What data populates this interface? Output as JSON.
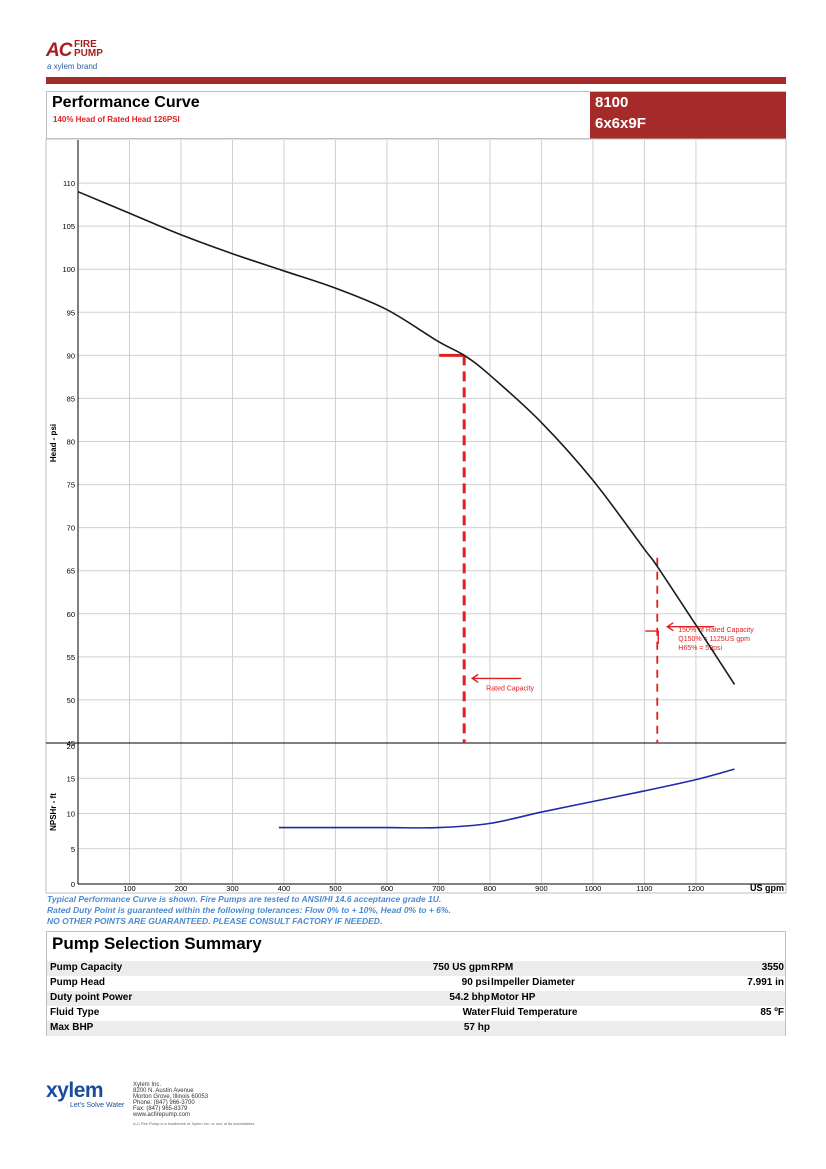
{
  "brand": {
    "mark": "AC",
    "name_line1": "FIRE",
    "name_line2": "PUMP",
    "tagline": "a xylem brand"
  },
  "header": {
    "title": "Performance Curve",
    "subtitle": "140% Head of Rated Head 126PSI",
    "model_number": "8100",
    "model_size": "6x6x9F"
  },
  "chart_data": [
    {
      "type": "line",
      "ylabel": "Head - psi",
      "xlabel": "US gpm",
      "xlim": [
        0,
        1375
      ],
      "ylim": [
        45,
        115
      ],
      "y_ticks": [
        45,
        50,
        55,
        60,
        65,
        70,
        75,
        80,
        85,
        90,
        95,
        100,
        105,
        110
      ],
      "x_ticks": [
        100,
        200,
        300,
        400,
        500,
        600,
        700,
        800,
        900,
        1000,
        1100,
        1200
      ],
      "grid": true,
      "series": [
        {
          "x": [
            0,
            100,
            200,
            300,
            400,
            500,
            600,
            700,
            750,
            800,
            900,
            1000,
            1100,
            1125,
            1200,
            1275
          ],
          "y": [
            109,
            106.5,
            104,
            101.8,
            99.8,
            97.8,
            95.3,
            91.6,
            90,
            87.7,
            82.2,
            75.5,
            67.5,
            65.5,
            58.7,
            51.8
          ]
        }
      ],
      "annotations": [
        {
          "text": "Rated Capacity",
          "x": 750,
          "y": 90
        },
        {
          "text": "150% of Rated Capacity",
          "line2": "Q150% = 1125US gpm",
          "line3": "H65% = 59psi",
          "x": 1125,
          "y": 65
        }
      ]
    },
    {
      "type": "line",
      "ylabel": "NPSHr - ft",
      "xlim": [
        0,
        1375
      ],
      "ylim": [
        0,
        20
      ],
      "y_ticks": [
        0,
        5,
        10,
        15,
        20
      ],
      "grid": true,
      "series": [
        {
          "x": [
            390,
            500,
            600,
            700,
            800,
            900,
            1000,
            1100,
            1200,
            1275
          ],
          "y": [
            8.0,
            8.0,
            8.0,
            8.0,
            8.6,
            10.2,
            11.7,
            13.2,
            14.8,
            16.3
          ]
        }
      ]
    }
  ],
  "notes": [
    "Typical Performance Curve is shown. Fire Pumps are tested to ANSI/HI 14.6 acceptance grade 1U.",
    "Rated Duty Point is guaranteed within the following tolerances: Flow 0% to + 10%, Head 0% to + 6%.",
    "NO OTHER POINTS ARE GUARANTEED. PLEASE CONSULT FACTORY IF NEEDED."
  ],
  "summary": {
    "title": "Pump Selection Summary",
    "rows": [
      {
        "l_label": "Pump Capacity",
        "l_value": "750 US gpm",
        "r_label": "RPM",
        "r_value": "3550"
      },
      {
        "l_label": "Pump Head",
        "l_value": "90 psi",
        "r_label": "Impeller Diameter",
        "r_value": "7.991 in"
      },
      {
        "l_label": "Duty point Power",
        "l_value": "54.2 bhp",
        "r_label": "Motor HP",
        "r_value": ""
      },
      {
        "l_label": "Fluid Type",
        "l_value": "Water",
        "r_label": "Fluid Temperature",
        "r_value": "85 ºF"
      },
      {
        "l_label": "Max BHP",
        "l_value": "57 hp",
        "r_label": "",
        "r_value": ""
      }
    ]
  },
  "footer": {
    "logo": "xylem",
    "tagline": "Let's Solve Water",
    "address": [
      "Xylem Inc.",
      "8200 N. Austin Avenue",
      "Morton Grove, Illinois 60053",
      "Phone: (847) 966-3700",
      "Fax: (847) 965-8379",
      "www.acfirepump.com"
    ],
    "legal": "A-C Fire Pump is a trademark of Xylem Inc. or one of its subsidiaries"
  },
  "colors": {
    "accent": "#a52a2a",
    "curve": "#1a1a1a",
    "npsh": "#1f2aa8",
    "annotation": "#e02020",
    "note": "#4a8ad0"
  }
}
